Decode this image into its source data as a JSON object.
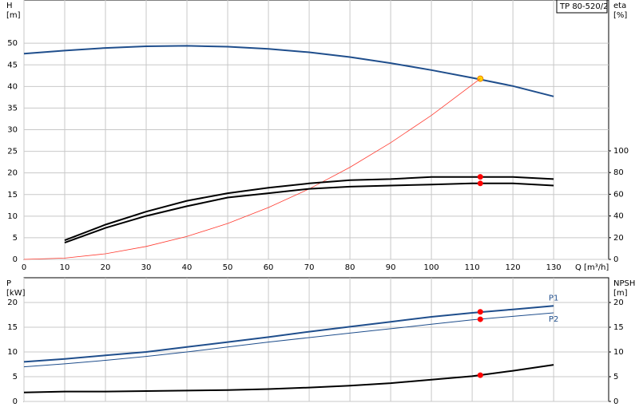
{
  "title": "TP 80-520/2",
  "chart_data": [
    {
      "type": "line",
      "ylabel": [
        "H",
        "[m]"
      ],
      "y2label": [
        "eta",
        "[%]"
      ],
      "xlabel": "Q [m³/h]",
      "xlim": [
        0,
        143.5
      ],
      "xticks": [
        0,
        10,
        20,
        30,
        40,
        50,
        60,
        70,
        80,
        90,
        100,
        110,
        120,
        130
      ],
      "xtick_labels": true,
      "ylim": [
        0,
        60
      ],
      "yticks": [
        0,
        5,
        10,
        15,
        20,
        25,
        30,
        35,
        40,
        45,
        50
      ],
      "y2lim": [
        0,
        239
      ],
      "y2ticks": [
        0,
        20,
        40,
        60,
        80,
        100
      ],
      "grid": true,
      "series": [
        {
          "color": "#1f4e8c",
          "width": 2,
          "x": [
            0,
            10,
            20,
            30,
            40,
            50,
            60,
            70,
            80,
            90,
            100,
            110,
            120,
            130
          ],
          "values": [
            47.6,
            48.3,
            48.9,
            49.3,
            49.4,
            49.2,
            48.7,
            47.9,
            46.8,
            45.4,
            43.8,
            42,
            40.1,
            37.7
          ],
          "marker": {
            "x": 112,
            "y": 41.8
          },
          "marker_color": "#ffd700"
        },
        {
          "color": "#ff3b30",
          "width": 0.8,
          "x": [
            0,
            10,
            20,
            30,
            40,
            50,
            60,
            70,
            80,
            90,
            100,
            112
          ],
          "values": [
            0,
            0.3,
            1.3,
            3,
            5.3,
            8.3,
            12,
            16.3,
            21.3,
            27,
            33.3,
            41.8
          ]
        },
        {
          "color": "#000000",
          "width": 2,
          "axis": "y2",
          "x": [
            10,
            20,
            30,
            40,
            50,
            60,
            70,
            80,
            90,
            100,
            110,
            120,
            130
          ],
          "values": [
            17.6,
            32,
            44,
            54,
            61,
            66,
            70,
            73,
            74,
            76,
            76,
            76,
            74
          ],
          "marker": {
            "x": 112,
            "y": 76
          },
          "marker_color": "#ff0000"
        },
        {
          "color": "#000000",
          "width": 2,
          "axis": "y2",
          "x": [
            10,
            20,
            30,
            40,
            50,
            60,
            70,
            80,
            90,
            100,
            110,
            120,
            130
          ],
          "values": [
            15.4,
            29,
            40,
            49,
            57,
            61,
            65,
            67,
            68,
            69,
            70,
            70,
            68
          ],
          "marker": {
            "x": 112,
            "y": 70
          },
          "marker_color": "#ff0000"
        }
      ]
    },
    {
      "type": "line",
      "ylabel": [
        "P",
        "[kW]"
      ],
      "y2label": [
        "NPSH",
        "[m]"
      ],
      "xlim": [
        0,
        143.5
      ],
      "xticks": [
        0,
        10,
        20,
        30,
        40,
        50,
        60,
        70,
        80,
        90,
        100,
        110,
        120,
        130
      ],
      "xtick_labels": false,
      "ylim": [
        0,
        25
      ],
      "yticks": [
        0,
        5,
        10,
        15,
        20
      ],
      "y2lim": [
        0,
        25
      ],
      "y2ticks": [
        0,
        5,
        10,
        15,
        20
      ],
      "grid": true,
      "series": [
        {
          "name": "P1",
          "color": "#1f4e8c",
          "width": 2,
          "x": [
            0,
            10,
            20,
            30,
            40,
            50,
            60,
            70,
            80,
            90,
            100,
            110,
            120,
            130
          ],
          "values": [
            8,
            8.6,
            9.3,
            10,
            11,
            12,
            13,
            14.1,
            15.1,
            16.1,
            17.1,
            17.9,
            18.6,
            19.3
          ],
          "marker": {
            "x": 112,
            "y": 18.1
          },
          "marker_color": "#ff0000"
        },
        {
          "name": "P2",
          "color": "#1f4e8c",
          "width": 1,
          "x": [
            0,
            10,
            20,
            30,
            40,
            50,
            60,
            70,
            80,
            90,
            100,
            110,
            120,
            130
          ],
          "values": [
            7,
            7.6,
            8.3,
            9.1,
            10,
            11,
            12,
            12.9,
            13.8,
            14.7,
            15.6,
            16.5,
            17.2,
            17.9
          ],
          "marker": {
            "x": 112,
            "y": 16.6
          },
          "marker_color": "#ff0000"
        },
        {
          "color": "#000000",
          "width": 2,
          "axis": "y2",
          "x": [
            0,
            10,
            20,
            30,
            40,
            50,
            60,
            70,
            80,
            90,
            100,
            110,
            120,
            130
          ],
          "values": [
            1.8,
            2,
            2,
            2.1,
            2.2,
            2.3,
            2.5,
            2.8,
            3.2,
            3.7,
            4.4,
            5.1,
            6.2,
            7.4
          ],
          "marker": {
            "x": 112,
            "y": 5.3
          },
          "marker_color": "#ff0000"
        }
      ]
    }
  ]
}
